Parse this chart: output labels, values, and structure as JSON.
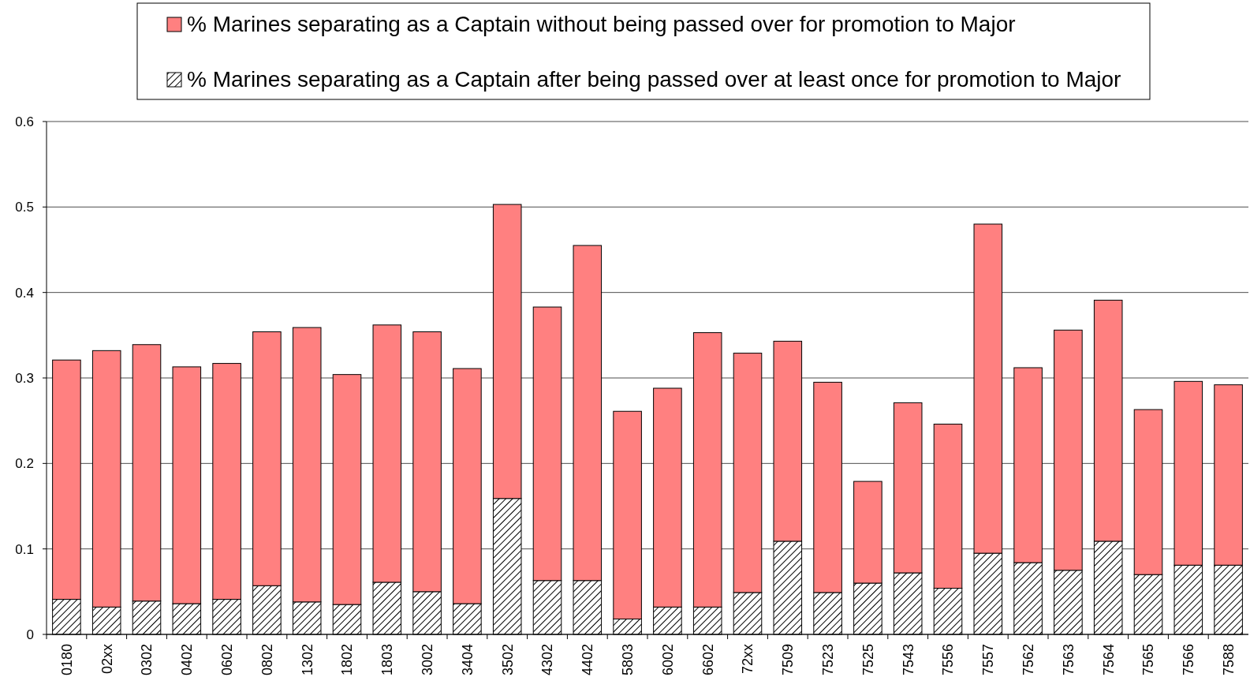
{
  "chart_data": {
    "type": "bar",
    "stacked": true,
    "categories": [
      "0180",
      "02xx",
      "0302",
      "0402",
      "0602",
      "0802",
      "1302",
      "1802",
      "1803",
      "3002",
      "3404",
      "3502",
      "4302",
      "4402",
      "5803",
      "6002",
      "6602",
      "72xx",
      "7509",
      "7523",
      "7525",
      "7543",
      "7556",
      "7557",
      "7562",
      "7563",
      "7564",
      "7565",
      "7566",
      "7588"
    ],
    "series": [
      {
        "name": "% Marines separating as a Captain after being passed over at least once for promotion to Major",
        "color": "#000000",
        "values": [
          0.041,
          0.032,
          0.039,
          0.036,
          0.041,
          0.057,
          0.038,
          0.035,
          0.061,
          0.05,
          0.036,
          0.159,
          0.063,
          0.063,
          0.018,
          0.032,
          0.032,
          0.049,
          0.109,
          0.049,
          0.06,
          0.072,
          0.054,
          0.095,
          0.084,
          0.075,
          0.109,
          0.07,
          0.081,
          0.081
        ]
      },
      {
        "name": "% Marines separating as a Captain without being passed over for promotion to Major",
        "color": "#ff8080",
        "values": [
          0.28,
          0.3,
          0.3,
          0.277,
          0.276,
          0.297,
          0.321,
          0.269,
          0.301,
          0.304,
          0.275,
          0.344,
          0.32,
          0.392,
          0.243,
          0.256,
          0.321,
          0.28,
          0.234,
          0.246,
          0.119,
          0.199,
          0.192,
          0.385,
          0.228,
          0.281,
          0.282,
          0.193,
          0.215,
          0.211
        ]
      }
    ],
    "ylim": [
      0,
      0.6
    ],
    "yticks": [
      0,
      0.1,
      0.2,
      0.3,
      0.4,
      0.5,
      0.6
    ],
    "grid": "y",
    "legend": "top"
  }
}
